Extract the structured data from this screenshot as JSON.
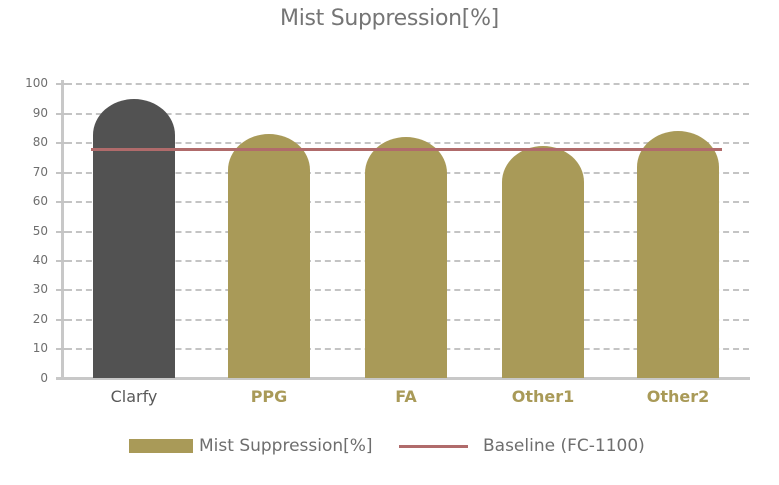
{
  "chart_data": {
    "type": "bar",
    "title": "Mist Suppression[%]",
    "xlabel": "",
    "ylabel": "",
    "ylim": [
      0,
      100
    ],
    "yticks": [
      0,
      10,
      20,
      30,
      40,
      50,
      60,
      70,
      80,
      90,
      100
    ],
    "grid": true,
    "legend_position": "bottom",
    "categories": [
      "Clarfy",
      "PPG",
      "FA",
      "Other1",
      "Other2"
    ],
    "series": [
      {
        "name": "Mist Suppression[%]",
        "type": "bar",
        "values": [
          95,
          83,
          82,
          79,
          84
        ],
        "colors": [
          "#525252",
          "#a99a58",
          "#a99a58",
          "#a99a58",
          "#a99a58"
        ]
      },
      {
        "name": "Baseline (FC-1100)",
        "type": "line",
        "value": 78,
        "color": "#b06b6b"
      }
    ]
  },
  "labels": {
    "title": "Mist Suppression[%]",
    "yticks": [
      "0",
      "10",
      "20",
      "30",
      "40",
      "50",
      "60",
      "70",
      "80",
      "90",
      "100"
    ],
    "categories": [
      "Clarfy",
      "PPG",
      "FA",
      "Other1",
      "Other2"
    ],
    "legend": {
      "bar": "Mist Suppression[%]",
      "line": "Baseline (FC-1100)"
    }
  },
  "colors": {
    "highlight_bar": "#525252",
    "bar": "#a99a58",
    "baseline": "#b06b6b",
    "text": "#6e6e6e",
    "grid": "#c4c4c4"
  }
}
